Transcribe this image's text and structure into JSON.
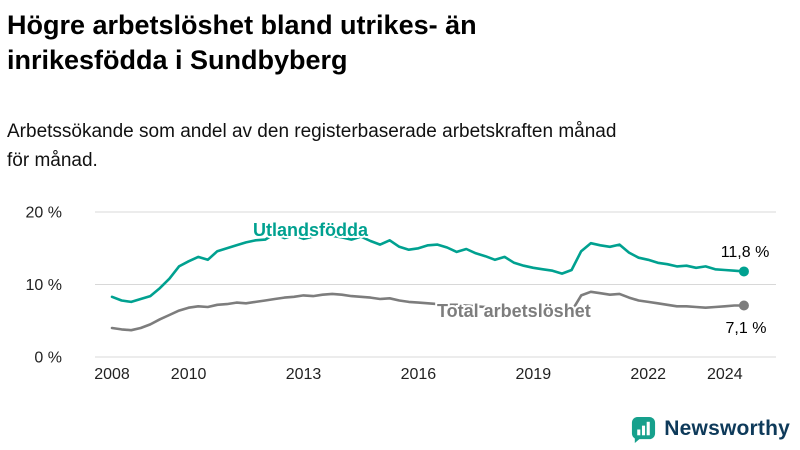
{
  "header": {
    "title": "Högre arbetslöshet bland utrikes- än\ninrikesfödda i Sundbyberg",
    "subtitle": "Arbetssökande som andel av den registerbaserade arbetskraften månad\nför månad."
  },
  "chart_data": {
    "type": "line",
    "title": "Högre arbetslöshet bland utrikes- än inrikesfödda i Sundbyberg",
    "xlabel": "",
    "ylabel": "Arbetssökande som andel av den registerbaserade arbetskraften (%)",
    "ylim": [
      0,
      20
    ],
    "grid": true,
    "legend_position": "inline-labels",
    "yticks": [
      {
        "value": 0,
        "label": "0 %"
      },
      {
        "value": 10,
        "label": "10 %"
      },
      {
        "value": 20,
        "label": "20 %"
      }
    ],
    "xticks": [
      {
        "value": 2008,
        "label": "2008"
      },
      {
        "value": 2010,
        "label": "2010"
      },
      {
        "value": 2013,
        "label": "2013"
      },
      {
        "value": 2016,
        "label": "2016"
      },
      {
        "value": 2019,
        "label": "2019"
      },
      {
        "value": 2022,
        "label": "2022"
      },
      {
        "value": 2024,
        "label": "2024"
      }
    ],
    "x": [
      2008,
      2008.25,
      2008.5,
      2008.75,
      2009,
      2009.25,
      2009.5,
      2009.75,
      2010,
      2010.25,
      2010.5,
      2010.75,
      2011,
      2011.25,
      2011.5,
      2011.75,
      2012,
      2012.25,
      2012.5,
      2012.75,
      2013,
      2013.25,
      2013.5,
      2013.75,
      2014,
      2014.25,
      2014.5,
      2014.75,
      2015,
      2015.25,
      2015.5,
      2015.75,
      2016,
      2016.25,
      2016.5,
      2016.75,
      2017,
      2017.25,
      2017.5,
      2017.75,
      2018,
      2018.25,
      2018.5,
      2018.75,
      2019,
      2019.25,
      2019.5,
      2019.75,
      2020,
      2020.25,
      2020.5,
      2020.75,
      2021,
      2021.25,
      2021.5,
      2021.75,
      2022,
      2022.25,
      2022.5,
      2022.75,
      2023,
      2023.25,
      2023.5,
      2023.75,
      2024,
      2024.25,
      2024.5
    ],
    "series": [
      {
        "name": "Utlandsfödda",
        "color": "#00a190",
        "end_label": "11,8 %",
        "end_value": 11.8,
        "values": [
          8.3,
          7.8,
          7.6,
          8.0,
          8.4,
          9.5,
          10.8,
          12.5,
          13.2,
          13.8,
          13.4,
          14.6,
          15.0,
          15.4,
          15.8,
          16.1,
          16.2,
          17.0,
          16.4,
          16.8,
          16.3,
          16.6,
          17.0,
          16.7,
          16.5,
          16.2,
          16.6,
          16.0,
          15.5,
          16.1,
          15.2,
          14.8,
          15.0,
          15.4,
          15.5,
          15.1,
          14.5,
          14.9,
          14.3,
          13.9,
          13.4,
          13.8,
          13.0,
          12.6,
          12.3,
          12.1,
          11.9,
          11.5,
          12.0,
          14.6,
          15.7,
          15.4,
          15.2,
          15.5,
          14.4,
          13.7,
          13.4,
          13.0,
          12.8,
          12.5,
          12.6,
          12.3,
          12.5,
          12.1,
          12.0,
          11.9,
          11.8
        ]
      },
      {
        "name": "Total arbetslöshet",
        "color": "#7d7d7d",
        "end_label": "7,1 %",
        "end_value": 7.1,
        "values": [
          4.0,
          3.8,
          3.7,
          4.0,
          4.5,
          5.2,
          5.8,
          6.4,
          6.8,
          7.0,
          6.9,
          7.2,
          7.3,
          7.5,
          7.4,
          7.6,
          7.8,
          8.0,
          8.2,
          8.3,
          8.5,
          8.4,
          8.6,
          8.7,
          8.6,
          8.4,
          8.3,
          8.2,
          8.0,
          8.1,
          7.8,
          7.6,
          7.5,
          7.4,
          7.3,
          7.2,
          7.2,
          7.1,
          7.0,
          6.9,
          6.8,
          6.7,
          6.6,
          6.5,
          6.4,
          6.3,
          6.2,
          6.0,
          6.3,
          8.5,
          9.0,
          8.8,
          8.6,
          8.7,
          8.2,
          7.8,
          7.6,
          7.4,
          7.2,
          7.0,
          7.0,
          6.9,
          6.8,
          6.9,
          7.0,
          7.1,
          7.1
        ]
      }
    ],
    "colors": {
      "grid": "#d8d8d8",
      "tick_text": "#222222"
    }
  },
  "footer": {
    "brand": "Newsworthy",
    "brand_color": "#0e3a5a",
    "logo_color": "#16a08c"
  }
}
